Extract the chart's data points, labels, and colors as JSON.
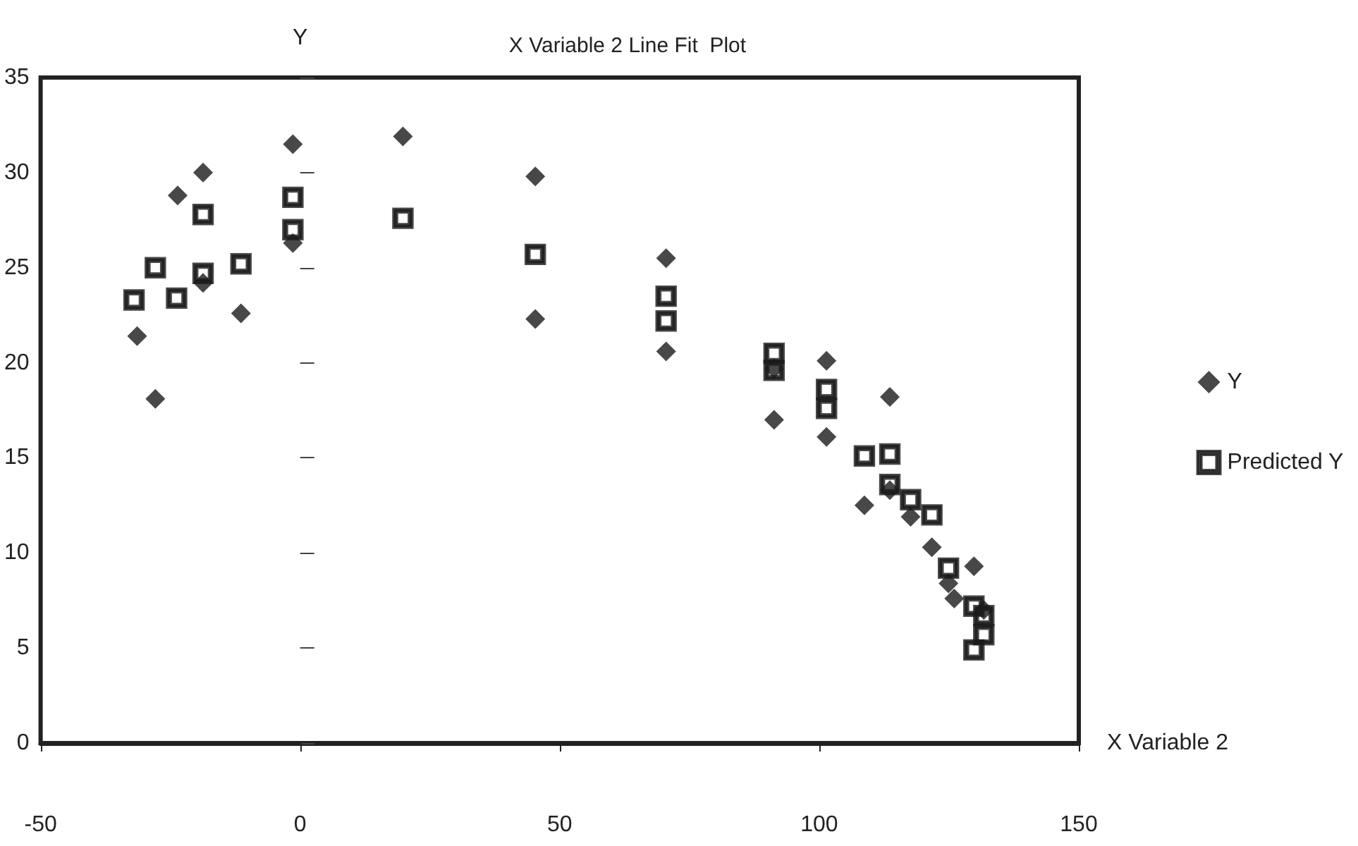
{
  "chart_data": {
    "type": "scatter",
    "title": "X Variable 2 Line Fit  Plot",
    "xlabel": "X Variable 2",
    "ylabel": "Y",
    "xlim": [
      -50,
      150
    ],
    "xticks": [
      -50,
      0,
      50,
      100,
      150
    ],
    "ylim": [
      0,
      35
    ],
    "yticks": [
      0,
      5,
      10,
      15,
      20,
      25,
      30,
      35
    ],
    "grid": false,
    "legend": "right",
    "series": [
      {
        "name": "Y",
        "color": "#1a1a1a",
        "marker": "diamond",
        "x": [
          -31.4,
          -27.9,
          -23.6,
          -18.7,
          -18.7,
          -11.4,
          -1.4,
          -1.4,
          19.8,
          45.3,
          45.3,
          70.5,
          70.5,
          91.3,
          91.3,
          101.4,
          101.4,
          108.7,
          113.6,
          113.6,
          117.6,
          121.7,
          124.9,
          126,
          129.8,
          131.7
        ],
        "values": [
          21.4,
          18.1,
          28.8,
          30.0,
          24.2,
          22.6,
          31.5,
          26.3,
          31.9,
          29.8,
          22.3,
          25.5,
          20.6,
          17.0,
          19.7,
          20.1,
          16.1,
          12.5,
          18.2,
          13.3,
          11.9,
          10.3,
          8.4,
          7.6,
          9.3,
          7.0
        ]
      },
      {
        "name": "Predicted Y",
        "color": "#1a1a1a",
        "marker": "square",
        "x": [
          -32,
          -27.9,
          -23.8,
          -18.7,
          -18.7,
          -11.4,
          -1.4,
          -1.4,
          19.8,
          45.3,
          70.5,
          70.5,
          91.3,
          91.3,
          101.4,
          101.4,
          108.7,
          113.6,
          113.6,
          117.6,
          121.7,
          124.9,
          129.8,
          131.7,
          131.7,
          129.8
        ],
        "values": [
          23.3,
          25.0,
          23.4,
          27.8,
          24.7,
          25.2,
          28.7,
          27.0,
          27.6,
          25.7,
          23.5,
          22.2,
          20.5,
          19.6,
          18.6,
          17.6,
          15.1,
          15.2,
          13.6,
          12.8,
          12.0,
          9.2,
          7.2,
          6.7,
          5.7,
          4.9
        ]
      }
    ]
  }
}
